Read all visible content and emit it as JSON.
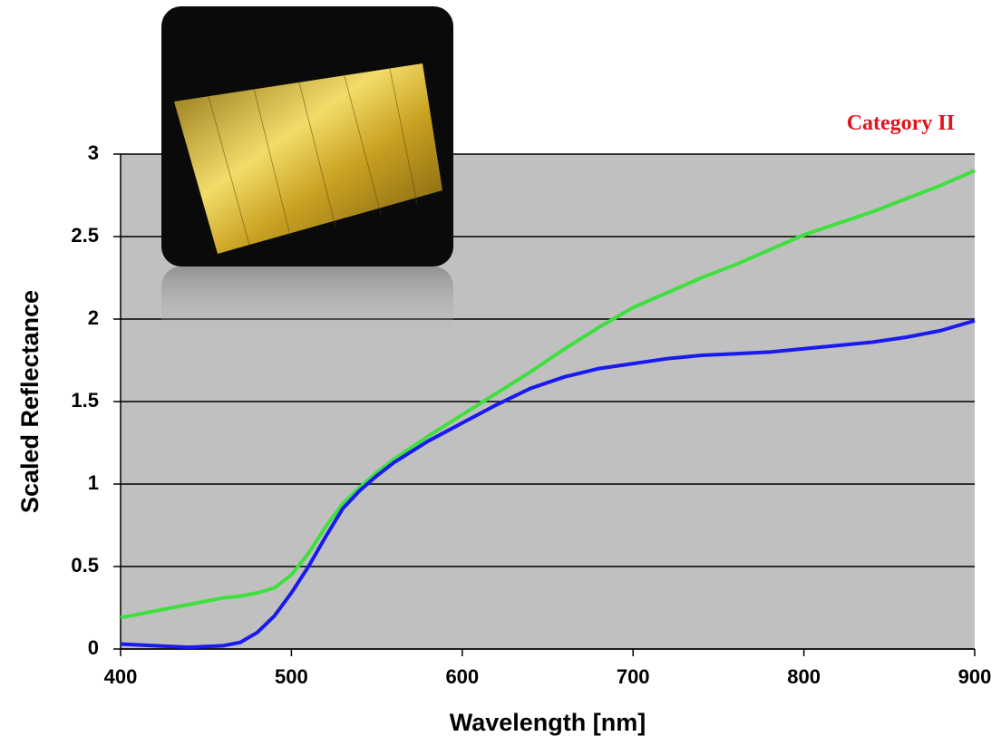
{
  "chart_data": {
    "type": "line",
    "xlabel": "Wavelength [nm]",
    "ylabel": "Scaled Reflectance",
    "annotation": "Category II",
    "x": [
      400,
      420,
      440,
      460,
      470,
      480,
      490,
      500,
      510,
      520,
      530,
      540,
      550,
      560,
      580,
      600,
      620,
      640,
      660,
      680,
      700,
      720,
      740,
      760,
      780,
      800,
      820,
      840,
      860,
      880,
      900
    ],
    "series": [
      {
        "color": "#3ee03e",
        "values": [
          0.19,
          0.23,
          0.27,
          0.31,
          0.32,
          0.34,
          0.37,
          0.45,
          0.58,
          0.74,
          0.88,
          0.98,
          1.07,
          1.15,
          1.29,
          1.42,
          1.55,
          1.68,
          1.82,
          1.95,
          2.07,
          2.16,
          2.25,
          2.33,
          2.42,
          2.51,
          2.58,
          2.65,
          2.73,
          2.81,
          2.9
        ]
      },
      {
        "color": "#1a1aee",
        "values": [
          0.03,
          0.02,
          0.01,
          0.02,
          0.04,
          0.1,
          0.2,
          0.34,
          0.5,
          0.68,
          0.85,
          0.96,
          1.05,
          1.13,
          1.26,
          1.37,
          1.48,
          1.58,
          1.65,
          1.7,
          1.73,
          1.76,
          1.78,
          1.79,
          1.8,
          1.82,
          1.84,
          1.86,
          1.89,
          1.93,
          1.99
        ]
      }
    ],
    "xlim": [
      400,
      900
    ],
    "xticks": [
      400,
      500,
      600,
      700,
      800,
      900
    ],
    "ylim": [
      0,
      3
    ],
    "yticks": [
      0,
      0.5,
      1,
      1.5,
      2,
      2.5,
      3
    ],
    "grid": true,
    "plot_background": "#c0c0c0"
  }
}
